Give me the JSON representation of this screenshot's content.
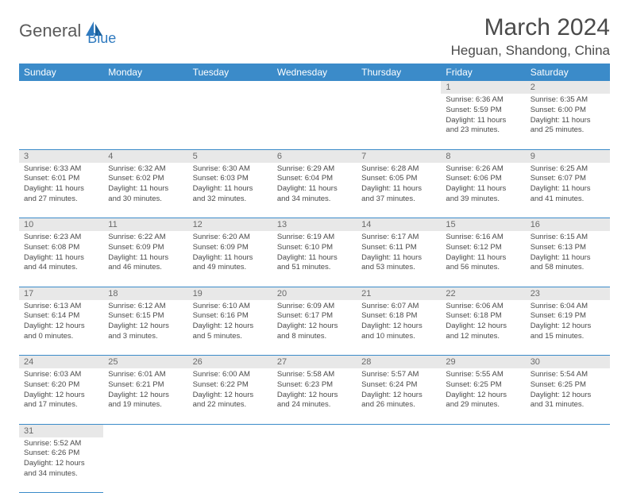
{
  "logo": {
    "part1": "General",
    "part2": "Blue"
  },
  "title": "March 2024",
  "location": "Heguan, Shandong, China",
  "weekdays": [
    "Sunday",
    "Monday",
    "Tuesday",
    "Wednesday",
    "Thursday",
    "Friday",
    "Saturday"
  ],
  "colors": {
    "header_bg": "#3b8bc9",
    "header_text": "#ffffff",
    "daynum_bg": "#e8e8e8",
    "logo_blue": "#2f7abf",
    "text": "#4a4a4a"
  },
  "weeks": [
    [
      null,
      null,
      null,
      null,
      null,
      {
        "n": "1",
        "sr": "Sunrise: 6:36 AM",
        "ss": "Sunset: 5:59 PM",
        "dl1": "Daylight: 11 hours",
        "dl2": "and 23 minutes."
      },
      {
        "n": "2",
        "sr": "Sunrise: 6:35 AM",
        "ss": "Sunset: 6:00 PM",
        "dl1": "Daylight: 11 hours",
        "dl2": "and 25 minutes."
      }
    ],
    [
      {
        "n": "3",
        "sr": "Sunrise: 6:33 AM",
        "ss": "Sunset: 6:01 PM",
        "dl1": "Daylight: 11 hours",
        "dl2": "and 27 minutes."
      },
      {
        "n": "4",
        "sr": "Sunrise: 6:32 AM",
        "ss": "Sunset: 6:02 PM",
        "dl1": "Daylight: 11 hours",
        "dl2": "and 30 minutes."
      },
      {
        "n": "5",
        "sr": "Sunrise: 6:30 AM",
        "ss": "Sunset: 6:03 PM",
        "dl1": "Daylight: 11 hours",
        "dl2": "and 32 minutes."
      },
      {
        "n": "6",
        "sr": "Sunrise: 6:29 AM",
        "ss": "Sunset: 6:04 PM",
        "dl1": "Daylight: 11 hours",
        "dl2": "and 34 minutes."
      },
      {
        "n": "7",
        "sr": "Sunrise: 6:28 AM",
        "ss": "Sunset: 6:05 PM",
        "dl1": "Daylight: 11 hours",
        "dl2": "and 37 minutes."
      },
      {
        "n": "8",
        "sr": "Sunrise: 6:26 AM",
        "ss": "Sunset: 6:06 PM",
        "dl1": "Daylight: 11 hours",
        "dl2": "and 39 minutes."
      },
      {
        "n": "9",
        "sr": "Sunrise: 6:25 AM",
        "ss": "Sunset: 6:07 PM",
        "dl1": "Daylight: 11 hours",
        "dl2": "and 41 minutes."
      }
    ],
    [
      {
        "n": "10",
        "sr": "Sunrise: 6:23 AM",
        "ss": "Sunset: 6:08 PM",
        "dl1": "Daylight: 11 hours",
        "dl2": "and 44 minutes."
      },
      {
        "n": "11",
        "sr": "Sunrise: 6:22 AM",
        "ss": "Sunset: 6:09 PM",
        "dl1": "Daylight: 11 hours",
        "dl2": "and 46 minutes."
      },
      {
        "n": "12",
        "sr": "Sunrise: 6:20 AM",
        "ss": "Sunset: 6:09 PM",
        "dl1": "Daylight: 11 hours",
        "dl2": "and 49 minutes."
      },
      {
        "n": "13",
        "sr": "Sunrise: 6:19 AM",
        "ss": "Sunset: 6:10 PM",
        "dl1": "Daylight: 11 hours",
        "dl2": "and 51 minutes."
      },
      {
        "n": "14",
        "sr": "Sunrise: 6:17 AM",
        "ss": "Sunset: 6:11 PM",
        "dl1": "Daylight: 11 hours",
        "dl2": "and 53 minutes."
      },
      {
        "n": "15",
        "sr": "Sunrise: 6:16 AM",
        "ss": "Sunset: 6:12 PM",
        "dl1": "Daylight: 11 hours",
        "dl2": "and 56 minutes."
      },
      {
        "n": "16",
        "sr": "Sunrise: 6:15 AM",
        "ss": "Sunset: 6:13 PM",
        "dl1": "Daylight: 11 hours",
        "dl2": "and 58 minutes."
      }
    ],
    [
      {
        "n": "17",
        "sr": "Sunrise: 6:13 AM",
        "ss": "Sunset: 6:14 PM",
        "dl1": "Daylight: 12 hours",
        "dl2": "and 0 minutes."
      },
      {
        "n": "18",
        "sr": "Sunrise: 6:12 AM",
        "ss": "Sunset: 6:15 PM",
        "dl1": "Daylight: 12 hours",
        "dl2": "and 3 minutes."
      },
      {
        "n": "19",
        "sr": "Sunrise: 6:10 AM",
        "ss": "Sunset: 6:16 PM",
        "dl1": "Daylight: 12 hours",
        "dl2": "and 5 minutes."
      },
      {
        "n": "20",
        "sr": "Sunrise: 6:09 AM",
        "ss": "Sunset: 6:17 PM",
        "dl1": "Daylight: 12 hours",
        "dl2": "and 8 minutes."
      },
      {
        "n": "21",
        "sr": "Sunrise: 6:07 AM",
        "ss": "Sunset: 6:18 PM",
        "dl1": "Daylight: 12 hours",
        "dl2": "and 10 minutes."
      },
      {
        "n": "22",
        "sr": "Sunrise: 6:06 AM",
        "ss": "Sunset: 6:18 PM",
        "dl1": "Daylight: 12 hours",
        "dl2": "and 12 minutes."
      },
      {
        "n": "23",
        "sr": "Sunrise: 6:04 AM",
        "ss": "Sunset: 6:19 PM",
        "dl1": "Daylight: 12 hours",
        "dl2": "and 15 minutes."
      }
    ],
    [
      {
        "n": "24",
        "sr": "Sunrise: 6:03 AM",
        "ss": "Sunset: 6:20 PM",
        "dl1": "Daylight: 12 hours",
        "dl2": "and 17 minutes."
      },
      {
        "n": "25",
        "sr": "Sunrise: 6:01 AM",
        "ss": "Sunset: 6:21 PM",
        "dl1": "Daylight: 12 hours",
        "dl2": "and 19 minutes."
      },
      {
        "n": "26",
        "sr": "Sunrise: 6:00 AM",
        "ss": "Sunset: 6:22 PM",
        "dl1": "Daylight: 12 hours",
        "dl2": "and 22 minutes."
      },
      {
        "n": "27",
        "sr": "Sunrise: 5:58 AM",
        "ss": "Sunset: 6:23 PM",
        "dl1": "Daylight: 12 hours",
        "dl2": "and 24 minutes."
      },
      {
        "n": "28",
        "sr": "Sunrise: 5:57 AM",
        "ss": "Sunset: 6:24 PM",
        "dl1": "Daylight: 12 hours",
        "dl2": "and 26 minutes."
      },
      {
        "n": "29",
        "sr": "Sunrise: 5:55 AM",
        "ss": "Sunset: 6:25 PM",
        "dl1": "Daylight: 12 hours",
        "dl2": "and 29 minutes."
      },
      {
        "n": "30",
        "sr": "Sunrise: 5:54 AM",
        "ss": "Sunset: 6:25 PM",
        "dl1": "Daylight: 12 hours",
        "dl2": "and 31 minutes."
      }
    ],
    [
      {
        "n": "31",
        "sr": "Sunrise: 5:52 AM",
        "ss": "Sunset: 6:26 PM",
        "dl1": "Daylight: 12 hours",
        "dl2": "and 34 minutes."
      },
      null,
      null,
      null,
      null,
      null,
      null
    ]
  ]
}
